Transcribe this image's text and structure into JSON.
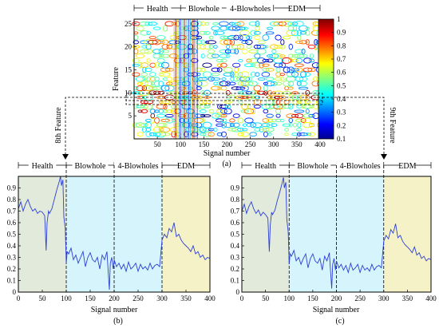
{
  "chart_data": [
    {
      "panel": "(a)",
      "type": "heatmap",
      "style": "contour",
      "xlabel": "Signal number",
      "ylabel": "Feature",
      "xlim": [
        0,
        400
      ],
      "ylim": [
        0,
        26
      ],
      "xticks": [
        50,
        100,
        150,
        200,
        250,
        300,
        350,
        400
      ],
      "yticks": [
        5,
        10,
        15,
        20,
        25
      ],
      "segments": [
        {
          "label": "Health",
          "from": 0,
          "to": 100
        },
        {
          "label": "Blowhole",
          "from": 100,
          "to": 200
        },
        {
          "label": "4-Blowholes",
          "from": 200,
          "to": 300
        },
        {
          "label": "EDM",
          "from": 300,
          "to": 400
        }
      ],
      "colorbar": {
        "min": 0.1,
        "max": 1,
        "ticks": [
          1,
          0.9,
          0.8,
          0.7,
          0.6,
          0.5,
          0.4,
          0.3,
          0.2,
          0.1
        ],
        "colormap": "jet"
      },
      "highlighted_features": [
        {
          "label": "8th Feature",
          "feature": 8
        },
        {
          "label": "9th Feature",
          "feature": 9
        }
      ]
    },
    {
      "panel": "(b)",
      "type": "line",
      "xlabel": "Signal number",
      "xlim": [
        0,
        400
      ],
      "ylim": [
        0,
        1
      ],
      "xticks": [
        0,
        50,
        100,
        150,
        200,
        250,
        300,
        350,
        400
      ],
      "yticks": [
        0,
        0.1,
        0.2,
        0.3,
        0.4,
        0.5,
        0.6,
        0.7,
        0.8,
        0.9
      ],
      "line_color": "#2b3fd6",
      "segments": [
        {
          "label": "Health",
          "from": 0,
          "to": 100,
          "color": "#e2eadb"
        },
        {
          "label": "Blowhole",
          "from": 100,
          "to": 200,
          "color": "#d6f4fb"
        },
        {
          "label": "4-Blowholes",
          "from": 200,
          "to": 300,
          "color": "#d6f4fb"
        },
        {
          "label": "EDM",
          "from": 300,
          "to": 400,
          "color": "#f6f2c8"
        }
      ],
      "series": [
        {
          "x": [
            0,
            5,
            10,
            15,
            20,
            25,
            30,
            35,
            40,
            45,
            50,
            55,
            58,
            60,
            63,
            65,
            70,
            75,
            80,
            85,
            88,
            90,
            93,
            95,
            98,
            100,
            102,
            105,
            110,
            115,
            120,
            125,
            130,
            135,
            140,
            145,
            150,
            155,
            160,
            165,
            170,
            175,
            180,
            185,
            190,
            192,
            195,
            198,
            200,
            205,
            210,
            215,
            220,
            225,
            230,
            235,
            240,
            245,
            250,
            255,
            260,
            265,
            270,
            275,
            280,
            285,
            290,
            295,
            300,
            305,
            310,
            315,
            320,
            325,
            330,
            335,
            340,
            345,
            350,
            355,
            360,
            365,
            370,
            375,
            380,
            385,
            390,
            395,
            400
          ],
          "y": [
            0.72,
            0.78,
            0.7,
            0.76,
            0.8,
            0.74,
            0.7,
            0.72,
            0.68,
            0.7,
            0.69,
            0.66,
            0.36,
            0.6,
            0.7,
            0.68,
            0.72,
            0.8,
            0.88,
            0.95,
            1.0,
            0.92,
            0.97,
            0.65,
            0.55,
            0.25,
            0.35,
            0.33,
            0.38,
            0.28,
            0.32,
            0.25,
            0.3,
            0.35,
            0.22,
            0.3,
            0.34,
            0.28,
            0.26,
            0.3,
            0.2,
            0.32,
            0.28,
            0.35,
            0.02,
            0.25,
            0.3,
            0.2,
            0.28,
            0.22,
            0.25,
            0.2,
            0.24,
            0.18,
            0.26,
            0.2,
            0.22,
            0.25,
            0.18,
            0.24,
            0.2,
            0.22,
            0.19,
            0.25,
            0.2,
            0.23,
            0.24,
            0.22,
            0.45,
            0.5,
            0.47,
            0.55,
            0.52,
            0.6,
            0.48,
            0.5,
            0.45,
            0.42,
            0.4,
            0.38,
            0.35,
            0.4,
            0.33,
            0.35,
            0.3,
            0.32,
            0.28,
            0.3,
            0.29
          ]
        }
      ]
    },
    {
      "panel": "(c)",
      "type": "line",
      "xlabel": "Signal number",
      "xlim": [
        0,
        400
      ],
      "ylim": [
        0,
        1
      ],
      "xticks": [
        0,
        50,
        100,
        150,
        200,
        250,
        300,
        350,
        400
      ],
      "yticks": [
        0,
        0.1,
        0.2,
        0.3,
        0.4,
        0.5,
        0.6,
        0.7,
        0.8,
        0.9
      ],
      "line_color": "#2b3fd6",
      "segments": [
        {
          "label": "Health",
          "from": 0,
          "to": 100,
          "color": "#e2eadb"
        },
        {
          "label": "Blowhole",
          "from": 100,
          "to": 200,
          "color": "#d6f4fb"
        },
        {
          "label": "4-Blowholes",
          "from": 200,
          "to": 300,
          "color": "#d6f4fb"
        },
        {
          "label": "EDM",
          "from": 300,
          "to": 400,
          "color": "#f6f2c8"
        }
      ],
      "series": [
        {
          "x": [
            0,
            5,
            10,
            15,
            20,
            25,
            30,
            35,
            40,
            45,
            50,
            55,
            58,
            60,
            63,
            65,
            70,
            75,
            80,
            85,
            88,
            90,
            93,
            95,
            98,
            100,
            102,
            105,
            110,
            115,
            120,
            125,
            130,
            135,
            140,
            145,
            150,
            155,
            160,
            165,
            170,
            175,
            180,
            185,
            190,
            192,
            195,
            198,
            200,
            205,
            210,
            215,
            220,
            225,
            230,
            235,
            240,
            245,
            250,
            255,
            260,
            265,
            270,
            275,
            280,
            285,
            290,
            295,
            300,
            305,
            310,
            315,
            320,
            325,
            330,
            335,
            340,
            345,
            350,
            355,
            360,
            365,
            370,
            375,
            380,
            385,
            390,
            395,
            400
          ],
          "y": [
            0.7,
            0.76,
            0.68,
            0.74,
            0.78,
            0.72,
            0.68,
            0.71,
            0.66,
            0.69,
            0.67,
            0.64,
            0.35,
            0.58,
            0.69,
            0.67,
            0.71,
            0.79,
            0.86,
            0.94,
            0.99,
            0.9,
            0.95,
            0.63,
            0.52,
            0.24,
            0.33,
            0.31,
            0.36,
            0.27,
            0.3,
            0.24,
            0.29,
            0.33,
            0.21,
            0.29,
            0.33,
            0.27,
            0.25,
            0.29,
            0.19,
            0.31,
            0.27,
            0.34,
            0.03,
            0.24,
            0.29,
            0.19,
            0.27,
            0.21,
            0.24,
            0.19,
            0.23,
            0.17,
            0.25,
            0.19,
            0.21,
            0.24,
            0.17,
            0.23,
            0.19,
            0.21,
            0.18,
            0.24,
            0.19,
            0.22,
            0.23,
            0.21,
            0.44,
            0.49,
            0.46,
            0.54,
            0.51,
            0.59,
            0.47,
            0.49,
            0.44,
            0.41,
            0.39,
            0.37,
            0.34,
            0.39,
            0.32,
            0.34,
            0.29,
            0.31,
            0.27,
            0.29,
            0.28
          ]
        }
      ]
    }
  ]
}
